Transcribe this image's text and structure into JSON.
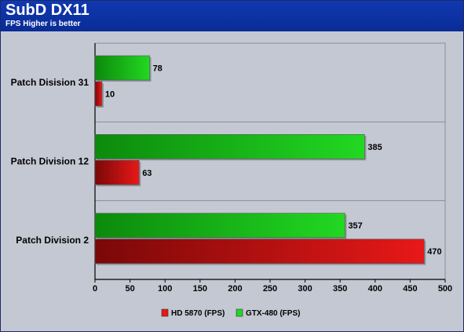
{
  "header": {
    "title": "SubD DX11",
    "subtitle": "FPS Higher is better"
  },
  "chart_data": {
    "type": "bar",
    "orientation": "horizontal",
    "title": "SubD DX11",
    "subtitle": "FPS Higher is better",
    "categories": [
      "Patch Disision 31",
      "Patch Division 12",
      "Patch Division 2"
    ],
    "series": [
      {
        "name": "GTX-480 (FPS)",
        "values": [
          78,
          385,
          357
        ],
        "color": "#22d822"
      },
      {
        "name": "HD 5870 (FPS)",
        "values": [
          10,
          63,
          470
        ],
        "color": "#e81818"
      }
    ],
    "xlim": [
      0,
      500
    ],
    "xticks": [
      0,
      50,
      100,
      150,
      200,
      250,
      300,
      350,
      400,
      450,
      500
    ],
    "xlabel": "",
    "ylabel": "",
    "grid": true,
    "legend_position": "bottom",
    "legend": [
      "HD 5870 (FPS)",
      "GTX-480 (FPS)"
    ],
    "background_color": "#c4c8d2",
    "header_color": "#0a2c96"
  }
}
